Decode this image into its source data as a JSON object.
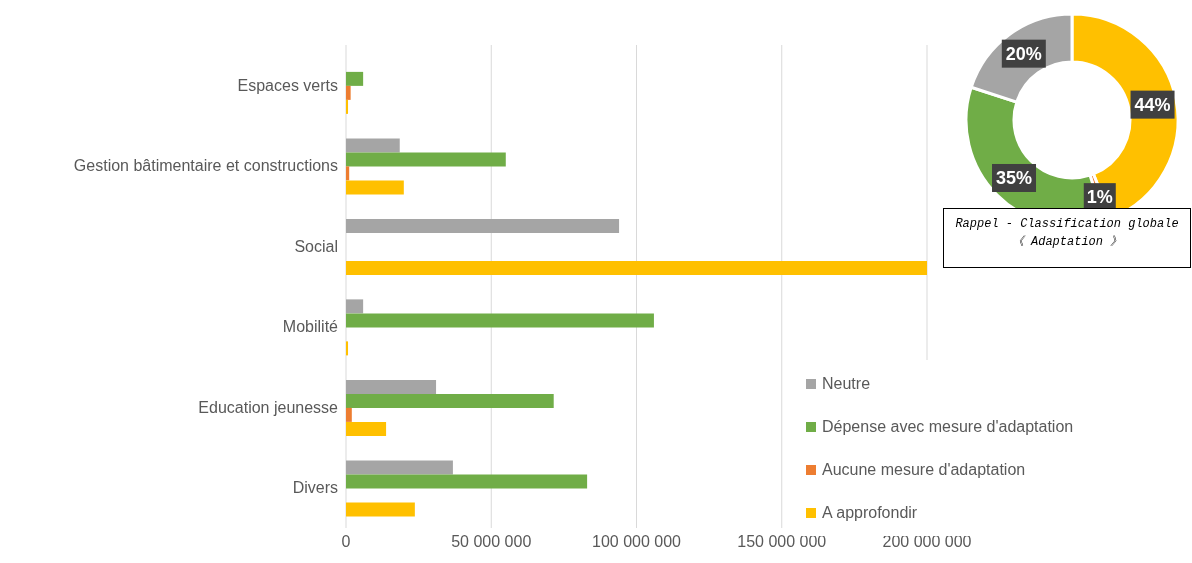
{
  "chart_data": [
    {
      "type": "bar",
      "orientation": "horizontal",
      "categories": [
        "Espaces verts",
        "Gestion bâtimentaire et constructions",
        "Social",
        "Mobilité",
        "Education jeunesse",
        "Divers"
      ],
      "series": [
        {
          "name": "Neutre",
          "color": "#a5a5a5",
          "values": [
            null,
            18500000,
            94000000,
            5900000,
            31000000,
            36800000
          ]
        },
        {
          "name": "Dépense avec mesure d'adaptation",
          "color": "#70ad47",
          "values": [
            5900000,
            55000000,
            null,
            106000000,
            71500000,
            83000000
          ]
        },
        {
          "name": "Aucune mesure d'adaptation",
          "color": "#ed7d31",
          "values": [
            1600000,
            1100000,
            null,
            null,
            2000000,
            null
          ]
        },
        {
          "name": "A approfondir",
          "color": "#ffc000",
          "values": [
            700000,
            19900000,
            200000000,
            700000,
            13800000,
            23700000
          ]
        }
      ],
      "xlim": [
        0,
        200000000
      ],
      "xticks": [
        {
          "value": 0,
          "label": "0"
        },
        {
          "value": 50000000,
          "label": "50 000 000"
        },
        {
          "value": 100000000,
          "label": "100 000 000"
        },
        {
          "value": 150000000,
          "label": "150 000 000"
        },
        {
          "value": 200000000,
          "label": "200 000 000"
        }
      ],
      "grid": "x",
      "legend": "bottom right"
    },
    {
      "type": "donut",
      "title": "Rappel - Classification globale 《 Adaptation 》",
      "categories": [
        null,
        null,
        null,
        null
      ],
      "values": [
        44,
        1,
        35,
        20
      ],
      "colors": [
        "#ffc000",
        "#ed7d31",
        "#70ad47",
        "#a5a5a5"
      ],
      "value_labels": [
        "44%",
        "1%",
        "35%",
        "20%"
      ]
    }
  ]
}
